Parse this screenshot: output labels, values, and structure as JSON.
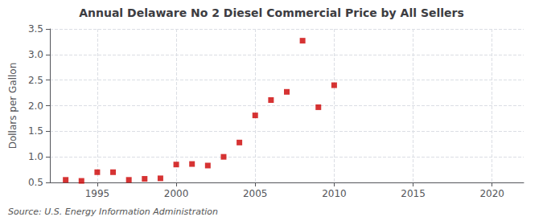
{
  "chart_data": {
    "type": "scatter",
    "title": "Annual Delaware No 2 Diesel Commercial Price by All Sellers",
    "ylabel": "Dollars per Gallon",
    "annotation": "Source: U.S. Energy Information Administration",
    "x": [
      1993,
      1994,
      1995,
      1996,
      1997,
      1998,
      1999,
      2000,
      2001,
      2002,
      2003,
      2004,
      2005,
      2006,
      2007,
      2008,
      2009,
      2010
    ],
    "values": [
      0.55,
      0.53,
      0.7,
      0.7,
      0.55,
      0.57,
      0.58,
      0.85,
      0.86,
      0.83,
      1.0,
      1.28,
      1.81,
      2.11,
      2.27,
      3.27,
      1.97,
      2.4
    ],
    "color": "#cc0000",
    "marker": "square",
    "xlim": [
      1992,
      2022
    ],
    "xticks": [
      1995,
      2000,
      2005,
      2010,
      2015,
      2020
    ],
    "ylim": [
      0.5,
      3.5
    ],
    "yticks": [
      0.5,
      {
        "value": 1.0,
        "label": "1.0"
      },
      1.5,
      {
        "value": 2.0,
        "label": "2.0"
      },
      2.5,
      {
        "value": 3.0,
        "label": "3.0"
      },
      3.5
    ],
    "grid": true
  }
}
